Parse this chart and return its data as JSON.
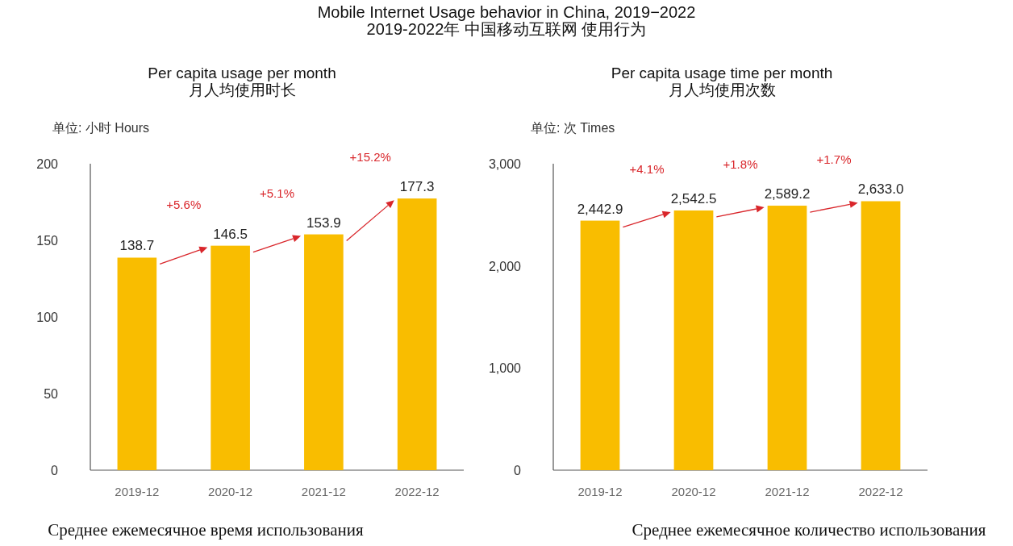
{
  "chart_data": [
    {
      "type": "bar",
      "title": "Mobile Internet Usage behavior in China, 2019−2022\n2019-2022年 中国移动互联网 使用行为",
      "subtitle": "Per capita usage per month\n月人均使用时长",
      "ylabel": "单位: 小时 Hours",
      "categories": [
        "2019-12",
        "2020-12",
        "2021-12",
        "2022-12"
      ],
      "values": [
        138.7,
        146.5,
        153.9,
        177.3
      ],
      "value_labels": [
        "138.7",
        "146.5",
        "153.9",
        "177.3"
      ],
      "color": "#f9bd00",
      "ylim": [
        0,
        200
      ],
      "yticks": [
        0,
        50,
        100,
        150,
        200
      ],
      "grid": false,
      "annotations": [
        "+5.6%",
        "+5.1%",
        "+15.2%",
        "Среднее ежемесячное время использования"
      ]
    },
    {
      "type": "bar",
      "title": "Per capita usage time per month\n月人均使用次数",
      "ylabel": "单位: 次 Times",
      "categories": [
        "2019-12",
        "2020-12",
        "2021-12",
        "2022-12"
      ],
      "values": [
        2442.9,
        2542.5,
        2589.2,
        2633.0
      ],
      "value_labels": [
        "2,442.9",
        "2,542.5",
        "2,589.2",
        "2,633.0"
      ],
      "color": "#f9bd00",
      "ylim": [
        0,
        3000
      ],
      "yticks": [
        0,
        {
          "value": 1000,
          "label": "1,000"
        },
        {
          "value": 2000,
          "label": "2,000"
        },
        {
          "value": 3000,
          "label": "3,000"
        }
      ],
      "grid": false,
      "annotations": [
        "+4.1%",
        "+1.8%",
        "+1.7%",
        "Среднее ежемесячное количество использования"
      ]
    }
  ]
}
